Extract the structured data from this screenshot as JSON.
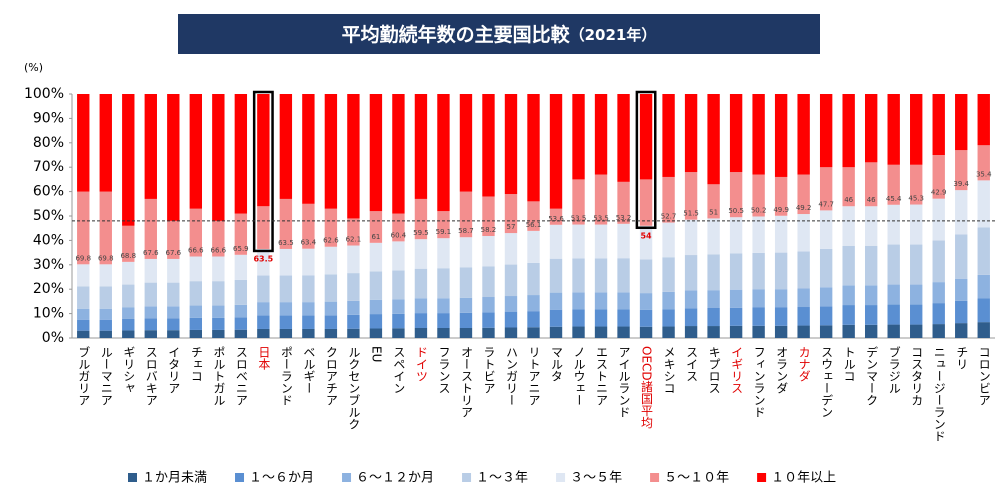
{
  "chart_data": {
    "type": "stacked_bar",
    "title": "平均勤続年数の主要国比較",
    "subtitle": "（2021年）",
    "ylabel": "(%)",
    "categories": [
      "ブルガリア",
      "ルーマニア",
      "ギリシャ",
      "スロバキア",
      "イタリア",
      "チェコ",
      "ポルトガル",
      "スロベニア",
      "日本",
      "ポーランド",
      "ベルギー",
      "クロアチア",
      "ルクセンブルク",
      "EU",
      "スペイン",
      "ドイツ",
      "フランス",
      "オーストリア",
      "ラトビア",
      "ハンガリー",
      "リトアニア",
      "マルタ",
      "ノルウェー",
      "エストニア",
      "アイルランド",
      "OECD諸国平均",
      "メキシコ",
      "スイス",
      "キプロス",
      "イギリス",
      "フィンランド",
      "オランダ",
      "カナダ",
      "スウェーデン",
      "トルコ",
      "デンマーク",
      "ブラジル",
      "コスタリカ",
      "ニュージーランド",
      "チリ",
      "コロンビア"
    ],
    "highlight_categories": [
      "日本",
      "OECD諸国平均"
    ],
    "red_label_categories": [
      "日本",
      "ドイツ",
      "OECD諸国平均",
      "イギリス",
      "カナダ"
    ],
    "series": [
      {
        "name": "１か月未満",
        "color": "#2f5d8c",
        "values": [
          3.0,
          3.0,
          3.1,
          3.2,
          3.2,
          3.3,
          3.3,
          3.4,
          3.7,
          3.7,
          3.7,
          3.7,
          3.8,
          3.9,
          4.0,
          4.1,
          4.1,
          4.1,
          4.2,
          4.3,
          4.4,
          4.6,
          4.7,
          4.7,
          4.7,
          4.6,
          4.7,
          4.9,
          4.9,
          5.0,
          5.0,
          5.0,
          5.1,
          5.2,
          5.4,
          5.4,
          5.5,
          5.5,
          5.7,
          6.1,
          6.5
        ]
      },
      {
        "name": "１～６か月",
        "color": "#5a8fd2",
        "values": [
          4.5,
          4.5,
          4.7,
          4.9,
          4.9,
          5.0,
          5.0,
          5.1,
          5.5,
          5.5,
          5.5,
          5.6,
          5.7,
          5.9,
          5.9,
          6.1,
          6.1,
          6.2,
          6.3,
          6.5,
          6.6,
          7.0,
          7.0,
          7.0,
          7.0,
          6.9,
          7.1,
          7.3,
          7.4,
          7.4,
          7.5,
          7.5,
          7.6,
          7.8,
          8.1,
          8.1,
          8.2,
          8.2,
          8.6,
          9.1,
          9.7
        ]
      },
      {
        "name": "６～１２か月",
        "color": "#8db2e0",
        "values": [
          4.5,
          4.5,
          4.7,
          4.9,
          4.9,
          5.0,
          5.0,
          5.1,
          5.5,
          5.5,
          5.5,
          5.6,
          5.7,
          5.8,
          5.9,
          6.1,
          6.1,
          6.2,
          6.3,
          6.4,
          6.6,
          7.0,
          7.0,
          7.0,
          7.0,
          6.9,
          7.1,
          7.3,
          7.3,
          7.4,
          7.5,
          7.5,
          7.6,
          7.8,
          8.1,
          8.1,
          8.2,
          8.2,
          8.6,
          9.1,
          9.7
        ]
      },
      {
        "name": "１～３年",
        "color": "#b9cde6",
        "values": [
          9.1,
          9.1,
          9.4,
          9.7,
          9.7,
          10.0,
          10.0,
          10.2,
          10.9,
          10.9,
          11.0,
          11.2,
          11.4,
          11.7,
          11.9,
          12.1,
          12.3,
          12.4,
          12.5,
          12.9,
          13.2,
          13.9,
          13.9,
          13.9,
          14.0,
          13.8,
          14.2,
          14.5,
          14.7,
          14.9,
          14.9,
          15.0,
          15.2,
          15.7,
          16.2,
          16.2,
          16.4,
          16.4,
          17.1,
          18.2,
          19.4
        ]
      },
      {
        "name": "３～５年",
        "color": "#dfe7f3",
        "values": [
          9.1,
          9.1,
          9.3,
          9.7,
          9.7,
          10.1,
          10.1,
          10.3,
          10.9,
          10.9,
          10.9,
          11.3,
          11.3,
          11.7,
          11.9,
          12.1,
          12.3,
          12.4,
          12.5,
          12.9,
          13.1,
          13.9,
          13.9,
          13.9,
          14.1,
          13.8,
          14.2,
          14.5,
          14.7,
          14.8,
          14.9,
          15.1,
          15.3,
          15.8,
          16.2,
          16.2,
          16.3,
          16.4,
          17.1,
          18.1,
          19.3
        ]
      },
      {
        "name": "５～１０年",
        "color": "#f38e8e",
        "values": [
          29.8,
          29.8,
          14.8,
          24.6,
          15.6,
          19.6,
          14.6,
          16.9,
          17.5,
          20.5,
          18.4,
          15.6,
          11.1,
          13.0,
          11.4,
          16.5,
          11.1,
          18.7,
          16.2,
          16.0,
          12.1,
          6.6,
          18.5,
          20.5,
          17.2,
          19.0,
          18.7,
          19.5,
          14.0,
          18.5,
          17.2,
          15.9,
          16.2,
          17.7,
          16.0,
          18.0,
          16.4,
          16.3,
          17.9,
          16.4,
          14.4
        ]
      },
      {
        "name": "１０年以上",
        "color": "#ff0000",
        "values": [
          40,
          40,
          54,
          43,
          52,
          47,
          52,
          49,
          46,
          43,
          45,
          47,
          51,
          48,
          49,
          43,
          48,
          40,
          42,
          41,
          44,
          47,
          35,
          33,
          36,
          35,
          34,
          32,
          37,
          32,
          33,
          34,
          33,
          30,
          30,
          28,
          29,
          29,
          25,
          23,
          21
        ]
      }
    ],
    "five_years_plus": [
      69.8,
      69.8,
      68.8,
      67.6,
      67.6,
      66.6,
      66.6,
      65.9,
      63.5,
      63.5,
      63.4,
      62.6,
      62.1,
      61.0,
      60.4,
      59.5,
      59.1,
      58.7,
      58.2,
      57.0,
      56.1,
      53.6,
      53.5,
      53.5,
      53.2,
      54.0,
      52.7,
      51.5,
      51.0,
      50.5,
      50.2,
      49.9,
      49.2,
      47.7,
      46.0,
      46.0,
      45.4,
      45.3,
      42.9,
      39.4,
      35.4
    ],
    "reference_line": 48,
    "ylim": [
      0,
      100
    ],
    "yticks": [
      {
        "value": 0,
        "label": "0%"
      },
      {
        "value": 10,
        "label": "10%"
      },
      {
        "value": 20,
        "label": "20%"
      },
      {
        "value": 30,
        "label": "30%"
      },
      {
        "value": 40,
        "label": "40%"
      },
      {
        "value": 50,
        "label": "50%"
      },
      {
        "value": 60,
        "label": "60%"
      },
      {
        "value": 70,
        "label": "70%"
      },
      {
        "value": 80,
        "label": "80%"
      },
      {
        "value": 90,
        "label": "90%"
      },
      {
        "value": 100,
        "label": "100%"
      }
    ],
    "legend": "bottom"
  }
}
